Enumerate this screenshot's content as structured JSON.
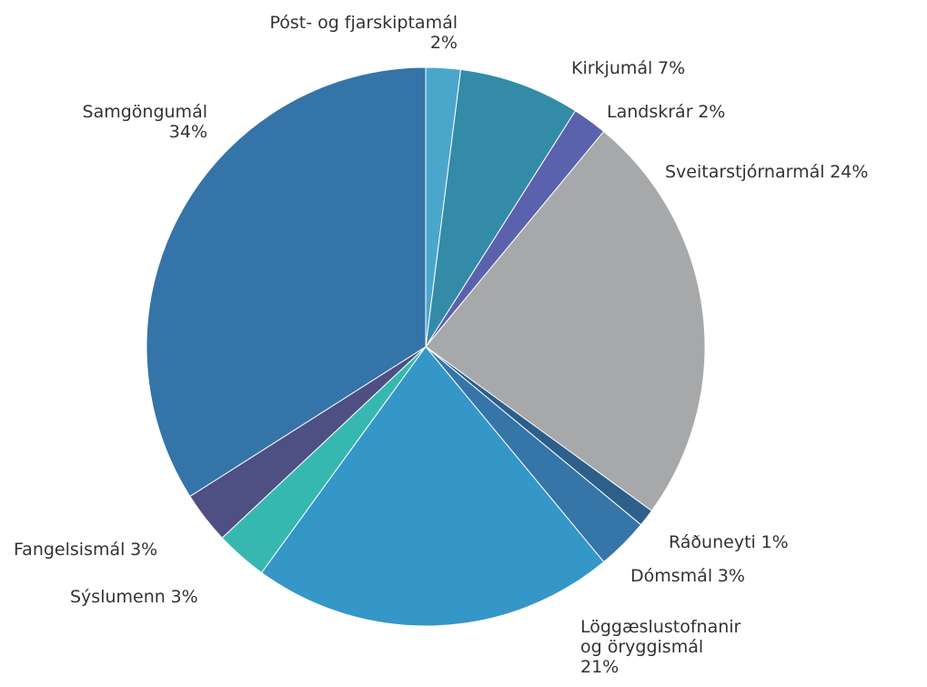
{
  "chart_data": {
    "type": "pie",
    "categories": [
      "Póst- og fjarskiptamál",
      "Kirkjumál",
      "Landskrár",
      "Sveitarstjórnarmál",
      "Ráðuneyti",
      "Dómsmál",
      "Löggæslustofnanir og öryggismál",
      "Sýslumenn",
      "Fangelsismál",
      "Samgöngumál"
    ],
    "values": [
      2,
      7,
      2,
      24,
      1,
      3,
      21,
      3,
      3,
      34
    ],
    "value_labels": [
      "2%",
      "7%",
      "2%",
      "24%",
      "1%",
      "3%",
      "21%",
      "3%",
      "3%",
      "34%"
    ],
    "colors": [
      "#4ba6cc",
      "#338ba8",
      "#5a62ad",
      "#a7a8aa",
      "#2c5f8a",
      "#3575a8",
      "#3596c8",
      "#36b8b0",
      "#4e4f82",
      "#3474a8"
    ]
  }
}
